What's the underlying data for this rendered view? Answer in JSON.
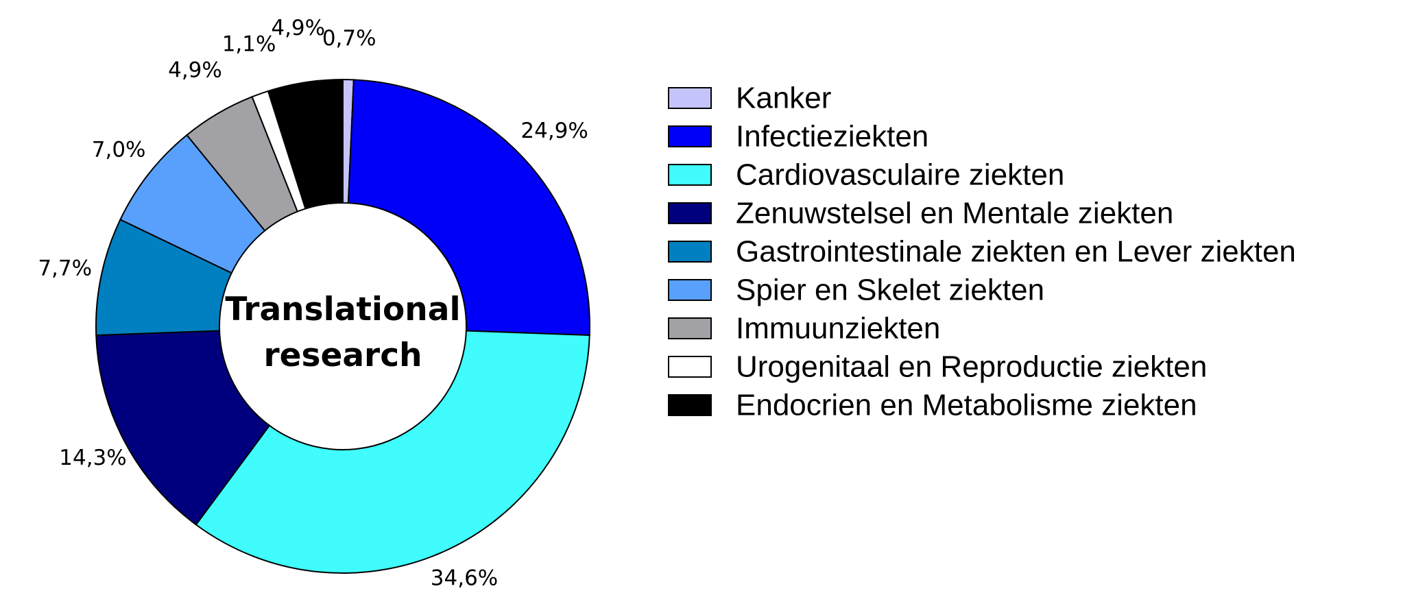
{
  "chart_data": {
    "type": "pie",
    "variant": "donut",
    "center_label": [
      "Translational",
      "research"
    ],
    "legend_position": "right",
    "categories": [
      "Kanker",
      "Infectieziekten",
      "Cardiovasculaire ziekten",
      "Zenuwstelsel en Mentale ziekten",
      "Gastrointestinale ziekten en Lever ziekten",
      "Spier en Skelet ziekten",
      "Immuunziekten",
      "Urogenitaal en Reproductie ziekten",
      "Endocrien en Metabolisme ziekten"
    ],
    "values": [
      0.7,
      24.9,
      34.6,
      14.3,
      7.7,
      7.0,
      4.9,
      1.1,
      4.9
    ],
    "labels": [
      "0,7%",
      "24,9%",
      "34,6%",
      "14,3%",
      "7,7%",
      "7,0%",
      "4,9%",
      "1,1%",
      "4,9%"
    ],
    "colors": [
      "#c4c4fa",
      "#0000f8",
      "#40fcfc",
      "#00007e",
      "#0080c0",
      "#58a0fc",
      "#a2a2a6",
      "#ffffff",
      "#000000"
    ],
    "slice_border_color": "#000000"
  }
}
